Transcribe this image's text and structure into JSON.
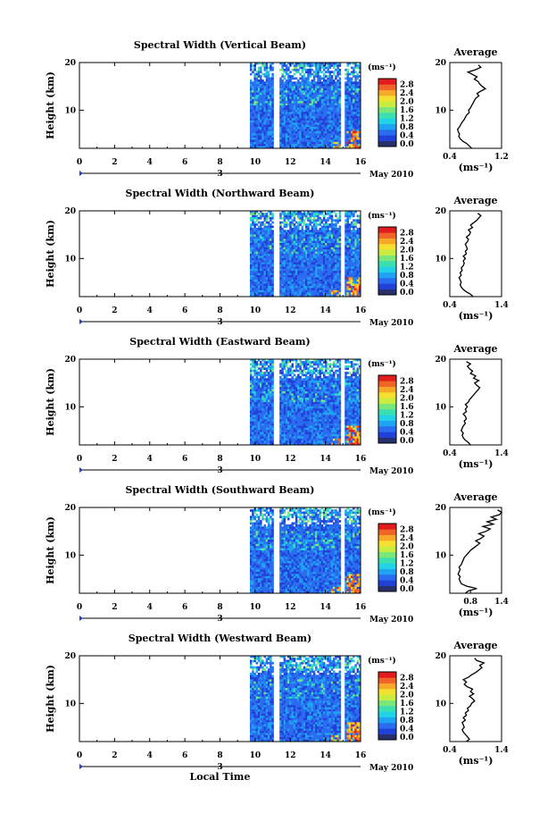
{
  "figure": {
    "xlabel": "Local Time",
    "date_label": "May 2010",
    "day_marker": "3",
    "colorbar_label": "(ms⁻¹)",
    "colorbar_ticks": [
      "0.0",
      "0.4",
      "0.8",
      "1.2",
      "1.6",
      "2.0",
      "2.4",
      "2.8"
    ]
  },
  "colorscale": [
    "#27306b",
    "#2040d8",
    "#2a6cf0",
    "#1ea4f2",
    "#22d2e6",
    "#3ce0b0",
    "#7ae878",
    "#c8ec40",
    "#f4e030",
    "#f8a828",
    "#f06428",
    "#e01c1c"
  ],
  "chart_data": [
    {
      "type": "heatmap",
      "title": "Spectral Width (Vertical Beam)",
      "ylabel": "Height (km)",
      "xlabel": "",
      "xlim": [
        0,
        16
      ],
      "ylim": [
        2,
        20
      ],
      "x_ticks": [
        "0",
        "2",
        "4",
        "6",
        "8",
        "10",
        "12",
        "14",
        "16"
      ],
      "y_ticks": [
        "10",
        "20"
      ],
      "data_window": [
        9.7,
        16
      ],
      "data_gaps": [
        [
          11.0,
          11.4
        ],
        [
          14.9,
          15.15
        ]
      ],
      "colorbar_range": [
        0.0,
        2.8
      ],
      "profile": {
        "title": "Average",
        "xlabel": "(ms⁻¹)",
        "xlim": [
          0.4,
          1.2
        ],
        "x_ticks": [
          "0.4",
          "1.2"
        ],
        "y_ticks": [
          "10",
          "20"
        ],
        "height": [
          2,
          2.5,
          3,
          3.5,
          4,
          4.5,
          5,
          5.5,
          6,
          6.5,
          7,
          7.5,
          8,
          8.5,
          9,
          9.5,
          10,
          10.5,
          11,
          11.5,
          12,
          12.5,
          13,
          13.5,
          14,
          14.5,
          15,
          15.5,
          16,
          16.5,
          17,
          17.5,
          18,
          18.5,
          19,
          19.5
        ],
        "value": [
          0.74,
          0.7,
          0.66,
          0.6,
          0.56,
          0.54,
          0.55,
          0.53,
          0.52,
          0.55,
          0.57,
          0.59,
          0.62,
          0.64,
          0.66,
          0.7,
          0.69,
          0.72,
          0.74,
          0.76,
          0.78,
          0.8,
          0.85,
          0.82,
          0.88,
          0.95,
          0.9,
          0.86,
          0.84,
          0.78,
          0.82,
          0.75,
          0.68,
          0.8,
          0.88,
          0.84
        ]
      }
    },
    {
      "type": "heatmap",
      "title": "Spectral Width (Northward Beam)",
      "ylabel": "Height (km)",
      "xlabel": "",
      "xlim": [
        0,
        16
      ],
      "ylim": [
        2,
        20
      ],
      "x_ticks": [
        "0",
        "2",
        "4",
        "6",
        "8",
        "10",
        "12",
        "14",
        "16"
      ],
      "y_ticks": [
        "10",
        "20"
      ],
      "data_window": [
        9.7,
        16
      ],
      "data_gaps": [
        [
          11.0,
          11.4
        ],
        [
          14.9,
          15.15
        ]
      ],
      "colorbar_range": [
        0.0,
        2.8
      ],
      "profile": {
        "title": "Average",
        "xlabel": "(ms⁻¹)",
        "xlim": [
          0.4,
          1.4
        ],
        "x_ticks": [
          "0.4",
          "1.4"
        ],
        "y_ticks": [
          "10",
          "20"
        ],
        "height": [
          2,
          2.5,
          3,
          3.5,
          4,
          4.5,
          5,
          5.5,
          6,
          6.5,
          7,
          7.5,
          8,
          8.5,
          9,
          9.5,
          10,
          10.5,
          11,
          11.5,
          12,
          12.5,
          13,
          13.5,
          14,
          14.5,
          15,
          15.5,
          16,
          16.5,
          17,
          17.5,
          18,
          18.5,
          19,
          19.5
        ],
        "value": [
          0.85,
          0.8,
          0.72,
          0.66,
          0.62,
          0.6,
          0.62,
          0.6,
          0.58,
          0.62,
          0.6,
          0.64,
          0.62,
          0.66,
          0.68,
          0.66,
          0.7,
          0.66,
          0.72,
          0.7,
          0.74,
          0.72,
          0.7,
          0.74,
          0.76,
          0.72,
          0.78,
          0.8,
          0.76,
          0.84,
          0.8,
          0.86,
          0.92,
          0.96,
          1.0,
          0.94
        ]
      }
    },
    {
      "type": "heatmap",
      "title": "Spectral Width (Eastward Beam)",
      "ylabel": "Height (km)",
      "xlabel": "",
      "xlim": [
        0,
        16
      ],
      "ylim": [
        2,
        20
      ],
      "x_ticks": [
        "0",
        "2",
        "4",
        "6",
        "8",
        "10",
        "12",
        "14",
        "16"
      ],
      "y_ticks": [
        "10",
        "20"
      ],
      "data_window": [
        9.7,
        16
      ],
      "data_gaps": [
        [
          11.0,
          11.4
        ],
        [
          14.9,
          15.15
        ]
      ],
      "colorbar_range": [
        0.0,
        2.8
      ],
      "profile": {
        "title": "Average",
        "xlabel": "(ms⁻¹)",
        "xlim": [
          0.4,
          1.4
        ],
        "x_ticks": [
          "0.4",
          "1.4"
        ],
        "y_ticks": [
          "10",
          "20"
        ],
        "height": [
          2,
          2.5,
          3,
          3.5,
          4,
          4.5,
          5,
          5.5,
          6,
          6.5,
          7,
          7.5,
          8,
          8.5,
          9,
          9.5,
          10,
          10.5,
          11,
          11.5,
          12,
          12.5,
          13,
          13.5,
          14,
          14.5,
          15,
          15.5,
          16,
          16.5,
          17,
          17.5,
          18,
          18.5,
          19,
          19.5
        ],
        "value": [
          0.8,
          0.76,
          0.7,
          0.66,
          0.64,
          0.66,
          0.62,
          0.64,
          0.66,
          0.7,
          0.68,
          0.72,
          0.7,
          0.66,
          0.72,
          0.7,
          0.74,
          0.7,
          0.76,
          0.78,
          0.82,
          0.86,
          0.9,
          0.94,
          0.98,
          0.92,
          0.88,
          0.96,
          0.86,
          0.9,
          0.8,
          0.84,
          0.78,
          0.74,
          0.8,
          0.72
        ]
      }
    },
    {
      "type": "heatmap",
      "title": "Spectral Width (Southward Beam)",
      "ylabel": "Height (km)",
      "xlabel": "",
      "xlim": [
        0,
        16
      ],
      "ylim": [
        2,
        20
      ],
      "x_ticks": [
        "0",
        "2",
        "4",
        "6",
        "8",
        "10",
        "12",
        "14",
        "16"
      ],
      "y_ticks": [
        "10",
        "20"
      ],
      "data_window": [
        9.7,
        16
      ],
      "data_gaps": [
        [
          11.0,
          11.4
        ],
        [
          14.9,
          15.15
        ]
      ],
      "colorbar_range": [
        0.0,
        2.8
      ],
      "profile": {
        "title": "Average",
        "xlabel": "(ms⁻¹)",
        "xlim": [
          0.4,
          1.4
        ],
        "x_ticks": [
          "0.8",
          "1.4"
        ],
        "y_ticks": [
          "10",
          "20"
        ],
        "height": [
          2,
          2.5,
          3,
          3.5,
          4,
          4.5,
          5,
          5.5,
          6,
          6.5,
          7,
          7.5,
          8,
          8.5,
          9,
          9.5,
          10,
          10.5,
          11,
          11.5,
          12,
          12.5,
          13,
          13.5,
          14,
          14.5,
          15,
          15.5,
          16,
          16.5,
          17,
          17.5,
          18,
          18.5,
          19,
          19.5
        ],
        "value": [
          0.7,
          0.76,
          0.92,
          0.72,
          0.62,
          0.6,
          0.58,
          0.6,
          0.56,
          0.58,
          0.6,
          0.58,
          0.62,
          0.64,
          0.66,
          0.68,
          0.72,
          0.76,
          0.8,
          0.86,
          0.92,
          0.98,
          0.9,
          1.0,
          1.06,
          0.96,
          1.1,
          1.18,
          1.04,
          1.24,
          1.12,
          1.3,
          1.2,
          1.36,
          1.4,
          1.32
        ]
      }
    },
    {
      "type": "heatmap",
      "title": "Spectral Width (Westward Beam)",
      "ylabel": "Height (km)",
      "xlabel": "Local Time",
      "xlim": [
        0,
        16
      ],
      "ylim": [
        2,
        20
      ],
      "x_ticks": [
        "0",
        "2",
        "4",
        "6",
        "8",
        "10",
        "12",
        "14",
        "16"
      ],
      "y_ticks": [
        "10",
        "20"
      ],
      "data_window": [
        9.7,
        16
      ],
      "data_gaps": [
        [
          11.0,
          11.4
        ],
        [
          14.9,
          15.15
        ]
      ],
      "colorbar_range": [
        0.0,
        2.8
      ],
      "profile": {
        "title": "Average",
        "xlabel": "(ms⁻¹)",
        "xlim": [
          0.4,
          1.4
        ],
        "x_ticks": [
          "0.4",
          "1.4"
        ],
        "y_ticks": [
          "10",
          "20"
        ],
        "height": [
          2,
          2.5,
          3,
          3.5,
          4,
          4.5,
          5,
          5.5,
          6,
          6.5,
          7,
          7.5,
          8,
          8.5,
          9,
          9.5,
          10,
          10.5,
          11,
          11.5,
          12,
          12.5,
          13,
          13.5,
          14,
          14.5,
          15,
          15.5,
          16,
          16.5,
          17,
          17.5,
          18,
          18.5,
          19,
          19.5
        ],
        "value": [
          0.72,
          0.78,
          0.74,
          0.7,
          0.66,
          0.64,
          0.68,
          0.66,
          0.64,
          0.7,
          0.66,
          0.72,
          0.7,
          0.76,
          0.74,
          0.8,
          0.82,
          0.88,
          0.84,
          0.78,
          0.86,
          0.8,
          0.84,
          0.74,
          0.68,
          0.72,
          0.66,
          0.76,
          0.82,
          0.9,
          0.96,
          1.02,
          0.98,
          1.06,
          0.92,
          0.88
        ]
      }
    }
  ]
}
